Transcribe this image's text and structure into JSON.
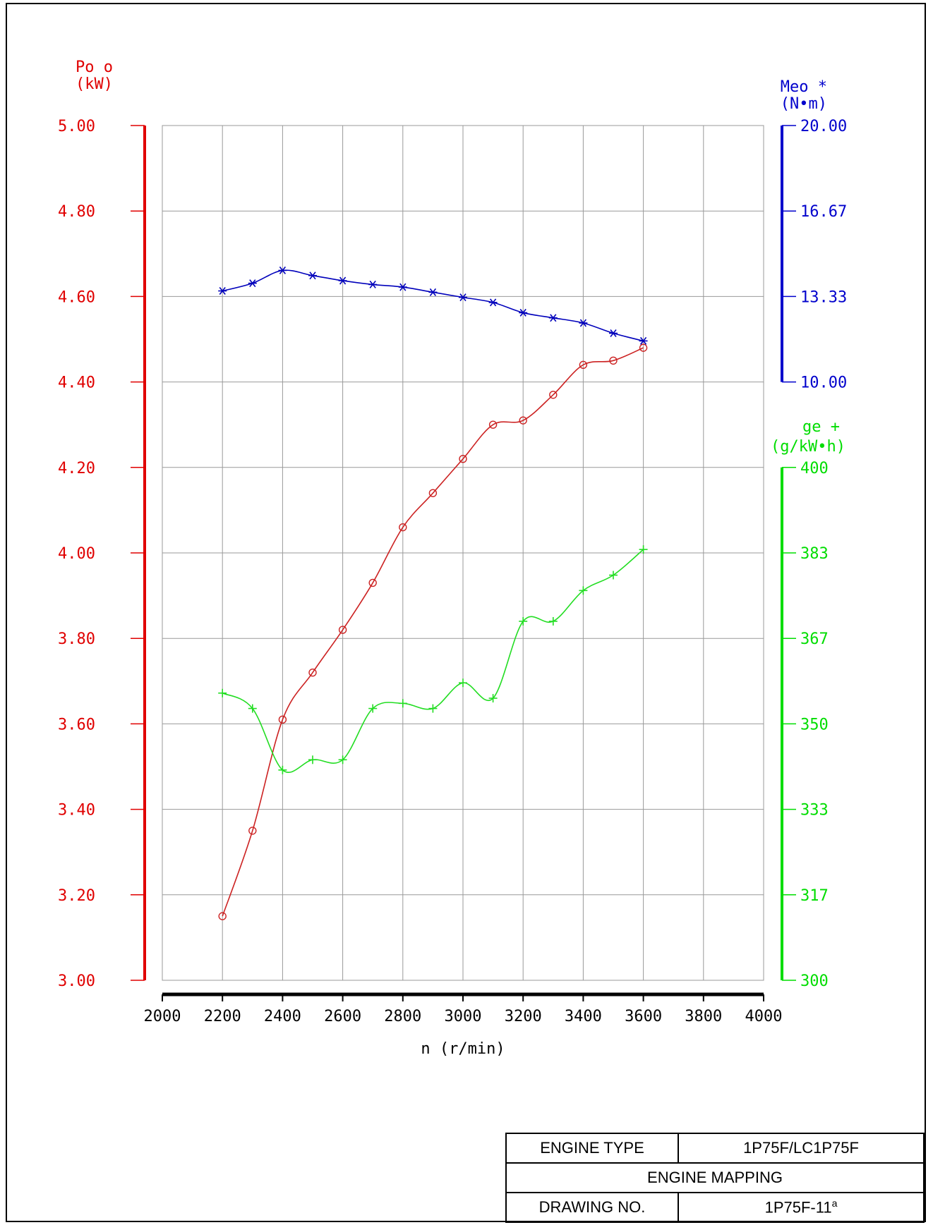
{
  "chart_data": {
    "type": "line",
    "x": [
      2200,
      2300,
      2400,
      2500,
      2600,
      2700,
      2800,
      2900,
      3000,
      3100,
      3200,
      3300,
      3400,
      3500,
      3600
    ],
    "xlabel": "n (r/min)",
    "xlim": [
      2000,
      4000
    ],
    "xticks": [
      2000,
      2200,
      2400,
      2600,
      2800,
      3000,
      3200,
      3400,
      3600,
      3800,
      4000
    ],
    "grid": true,
    "axes": {
      "power": {
        "label": "Po o",
        "unit": "(kW)",
        "ylim": [
          3.0,
          5.0
        ],
        "ticks": [
          "3.00",
          "3.20",
          "3.40",
          "3.60",
          "3.80",
          "4.00",
          "4.20",
          "4.40",
          "4.60",
          "4.80",
          "5.00"
        ],
        "side": "left",
        "color": "#e00000"
      },
      "torque": {
        "label": "Meo *",
        "unit": "(N•m)",
        "ylim": [
          10.0,
          20.0
        ],
        "ticks": [
          "10.00",
          "13.33",
          "16.67",
          "20.00"
        ],
        "side": "right",
        "color": "#0000cc"
      },
      "fuel": {
        "label": "ge  +",
        "unit": "(g/kW•h)",
        "ylim": [
          300,
          400
        ],
        "ticks": [
          "300",
          "317",
          "333",
          "350",
          "367",
          "383",
          "400"
        ],
        "side": "right",
        "color": "#00dd00"
      }
    },
    "series": [
      {
        "name": "Po",
        "axis": "power",
        "marker": "circle",
        "color": "#cc2222",
        "values": [
          3.15,
          3.35,
          3.61,
          3.72,
          3.82,
          3.93,
          4.06,
          4.14,
          4.22,
          4.3,
          4.31,
          4.37,
          4.44,
          4.45,
          4.48
        ]
      },
      {
        "name": "Meo",
        "axis": "torque",
        "marker": "star",
        "color": "#0000bb",
        "values": [
          13.55,
          13.85,
          14.35,
          14.15,
          13.95,
          13.8,
          13.7,
          13.5,
          13.3,
          13.1,
          12.7,
          12.5,
          12.3,
          11.9,
          11.6
        ]
      },
      {
        "name": "ge",
        "axis": "fuel",
        "marker": "plus",
        "color": "#22dd22",
        "values": [
          356,
          353,
          341,
          343,
          343,
          353,
          354,
          353,
          358,
          355,
          370,
          370,
          376,
          379,
          384
        ]
      }
    ]
  },
  "title_block": {
    "engine_type_label": "ENGINE TYPE",
    "engine_type_value": "1P75F/LC1P75F",
    "mapping_label": "ENGINE MAPPING",
    "drawing_no_label": "DRAWING NO.",
    "drawing_no_value": "1P75F-11",
    "drawing_no_suffix": "a"
  }
}
